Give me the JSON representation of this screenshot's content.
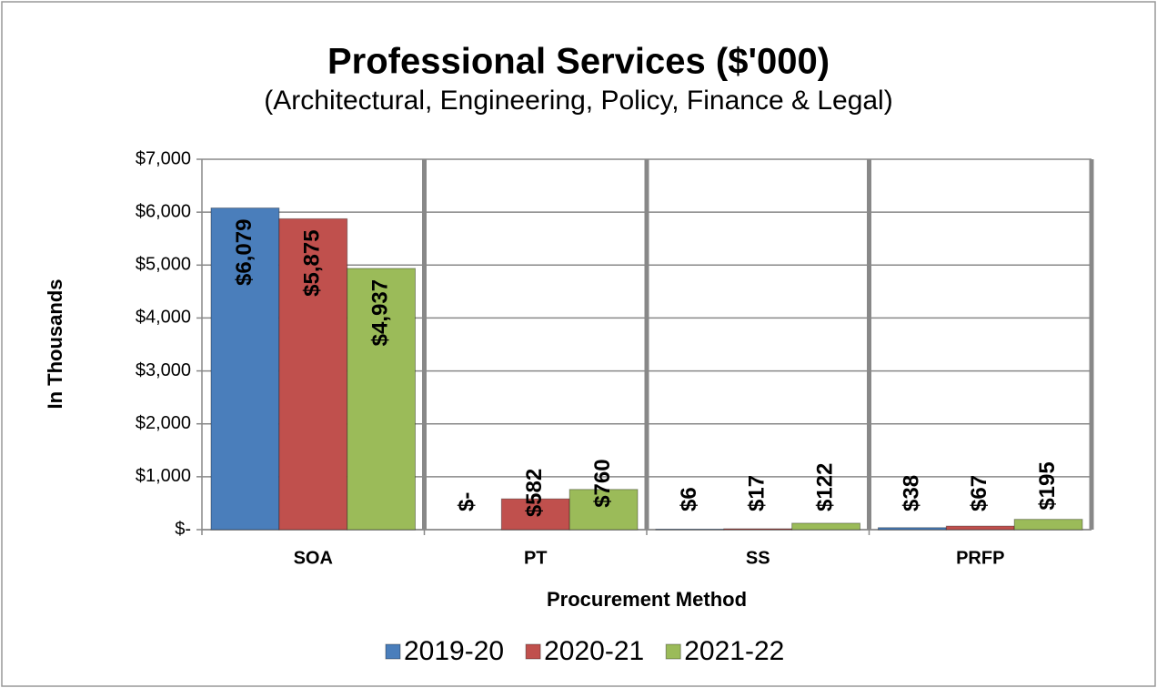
{
  "chart_data": {
    "type": "bar",
    "title": "Professional Services ($'000)",
    "subtitle": "(Architectural, Engineering, Policy, Finance & Legal)",
    "x_label": "Procurement Method",
    "y_label": "In Thousands",
    "categories": [
      "SOA",
      "PT",
      "SS",
      "PRFP"
    ],
    "series": [
      {
        "name": "2019-20",
        "color": "#4a7ebb",
        "values": [
          6079,
          0,
          6,
          38
        ],
        "value_labels": [
          "$6,079",
          "$-",
          "$6",
          "$38"
        ]
      },
      {
        "name": "2020-21",
        "color": "#c0504d",
        "values": [
          5875,
          582,
          17,
          67
        ],
        "value_labels": [
          "$5,875",
          "$582",
          "$17",
          "$67"
        ]
      },
      {
        "name": "2021-22",
        "color": "#9bbb59",
        "values": [
          4937,
          760,
          122,
          195
        ],
        "value_labels": [
          "$4,937",
          "$760",
          "$122",
          "$195"
        ]
      }
    ],
    "ylim": [
      0,
      7000
    ],
    "yticks": [
      {
        "value": 0,
        "label": "$-"
      },
      {
        "value": 1000,
        "label": "$1,000"
      },
      {
        "value": 2000,
        "label": "$2,000"
      },
      {
        "value": 3000,
        "label": "$3,000"
      },
      {
        "value": 4000,
        "label": "$4,000"
      },
      {
        "value": 5000,
        "label": "$5,000"
      },
      {
        "value": 6000,
        "label": "$6,000"
      },
      {
        "value": 7000,
        "label": "$7,000"
      }
    ],
    "grid": true,
    "legend": "bottom"
  }
}
